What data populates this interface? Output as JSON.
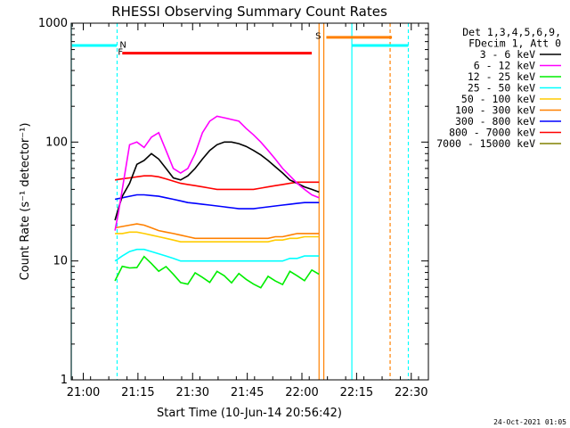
{
  "chart_data": {
    "type": "line",
    "title": "RHESSI Observing Summary Count Rates",
    "xlabel": "Start Time (10-Jun-14 20:56:42)",
    "ylabel": "Count Rate (s⁻¹ detector⁻¹)",
    "yscale": "log",
    "ylim": [
      1,
      1000
    ],
    "xlim_minutes_after_start": [
      0,
      98
    ],
    "x_tick_labels": [
      "21:00",
      "21:15",
      "21:30",
      "21:45",
      "22:00",
      "22:15",
      "22:30"
    ],
    "x_tick_minutes": [
      3.3,
      18.3,
      33.3,
      48.3,
      63.3,
      78.3,
      93.3
    ],
    "y_tick_labels": [
      "1",
      "10",
      "100",
      "1000"
    ],
    "y_tick_values": [
      1,
      10,
      100,
      1000
    ],
    "legend_header": [
      "Det 1,3,4,5,6,9,",
      "FDecim 1, Att 0"
    ],
    "series": [
      {
        "name": "3 - 6 keV",
        "color": "#000000",
        "x": [
          12,
          13,
          14,
          16,
          18,
          20,
          22,
          24,
          26,
          28,
          30,
          32,
          34,
          36,
          38,
          40,
          42,
          44,
          46,
          48,
          50,
          52,
          54,
          56,
          58,
          60,
          62,
          64,
          66,
          68
        ],
        "y": [
          22,
          28,
          35,
          45,
          65,
          70,
          80,
          72,
          60,
          50,
          48,
          52,
          60,
          72,
          85,
          95,
          100,
          100,
          97,
          92,
          85,
          78,
          70,
          62,
          55,
          48,
          45,
          42,
          40,
          38
        ]
      },
      {
        "name": "6 - 12 keV",
        "color": "#ff00ff",
        "x": [
          12,
          13,
          14,
          16,
          18,
          20,
          22,
          24,
          26,
          28,
          30,
          32,
          34,
          36,
          38,
          40,
          42,
          44,
          46,
          48,
          50,
          52,
          54,
          56,
          58,
          60,
          62,
          64,
          66,
          68
        ],
        "y": [
          18,
          26,
          40,
          95,
          100,
          90,
          110,
          120,
          85,
          60,
          55,
          60,
          80,
          120,
          150,
          165,
          160,
          155,
          150,
          130,
          115,
          100,
          85,
          72,
          60,
          52,
          45,
          40,
          36,
          34
        ]
      },
      {
        "name": "12 - 25 keV",
        "color": "#00ee00",
        "x": [
          12,
          14,
          16,
          18,
          20,
          22,
          24,
          26,
          28,
          30,
          32,
          34,
          36,
          38,
          40,
          42,
          44,
          46,
          48,
          50,
          52,
          54,
          56,
          58,
          60,
          62,
          64,
          66,
          68
        ],
        "y": [
          8,
          8.5,
          9,
          10,
          10,
          9.5,
          9,
          8,
          7.5,
          7,
          7.5,
          7.5,
          7.5,
          7.5,
          7.5,
          7.5,
          7.2,
          7,
          6.8,
          6.8,
          7,
          7,
          7,
          7.2,
          7.5,
          7.5,
          7.5,
          7.5,
          7.5
        ]
      },
      {
        "name": "25 - 50 keV",
        "color": "#00ffff",
        "x": [
          12,
          14,
          16,
          18,
          20,
          22,
          24,
          26,
          28,
          30,
          32,
          34,
          36,
          38,
          40,
          42,
          44,
          46,
          48,
          50,
          52,
          54,
          56,
          58,
          60,
          62,
          64,
          66,
          68
        ],
        "y": [
          10,
          11,
          12,
          12.5,
          12.5,
          12,
          11.5,
          11,
          10.5,
          10,
          10,
          10,
          10,
          10,
          10,
          10,
          10,
          10,
          10,
          10,
          10,
          10,
          10,
          10,
          10.5,
          10.5,
          11,
          11,
          11
        ]
      },
      {
        "name": "50 - 100 keV",
        "color": "#ffcc00",
        "x": [
          12,
          14,
          16,
          18,
          20,
          22,
          24,
          26,
          28,
          30,
          32,
          34,
          36,
          38,
          40,
          42,
          44,
          46,
          48,
          50,
          52,
          54,
          56,
          58,
          60,
          62,
          64,
          66,
          68
        ],
        "y": [
          17,
          17,
          17.5,
          17.5,
          17,
          16.5,
          16,
          15.5,
          15,
          14.5,
          14.5,
          14.5,
          14.5,
          14.5,
          14.5,
          14.5,
          14.5,
          14.5,
          14.5,
          14.5,
          14.5,
          14.5,
          15,
          15,
          15.5,
          15.5,
          16,
          16,
          16
        ]
      },
      {
        "name": "100 - 300 keV",
        "color": "#ff8000",
        "x": [
          12,
          14,
          16,
          18,
          20,
          22,
          24,
          26,
          28,
          30,
          32,
          34,
          36,
          38,
          40,
          42,
          44,
          46,
          48,
          50,
          52,
          54,
          56,
          58,
          60,
          62,
          64,
          66,
          68
        ],
        "y": [
          19,
          19.5,
          20,
          20.5,
          20,
          19,
          18,
          17.5,
          17,
          16.5,
          16,
          15.5,
          15.5,
          15.5,
          15.5,
          15.5,
          15.5,
          15.5,
          15.5,
          15.5,
          15.5,
          15.5,
          16,
          16,
          16.5,
          17,
          17,
          17,
          17
        ]
      },
      {
        "name": "300 - 800 keV",
        "color": "#0000ff",
        "x": [
          12,
          14,
          16,
          18,
          20,
          22,
          24,
          26,
          28,
          30,
          32,
          34,
          36,
          38,
          40,
          42,
          44,
          46,
          48,
          50,
          52,
          54,
          56,
          58,
          60,
          62,
          64,
          66,
          68
        ],
        "y": [
          33,
          34,
          35,
          36,
          36,
          35.5,
          35,
          34,
          33,
          32,
          31,
          30.5,
          30,
          29.5,
          29,
          28.5,
          28,
          27.5,
          27.5,
          27.5,
          28,
          28.5,
          29,
          29.5,
          30,
          30.5,
          31,
          31,
          31
        ]
      },
      {
        "name": "800 - 7000 keV",
        "color": "#ff0000",
        "x": [
          12,
          14,
          16,
          18,
          20,
          22,
          24,
          26,
          28,
          30,
          32,
          34,
          36,
          38,
          40,
          42,
          44,
          46,
          48,
          50,
          52,
          54,
          56,
          58,
          60,
          62,
          64,
          66,
          68
        ],
        "y": [
          48,
          49,
          50,
          51,
          52,
          52,
          51,
          49,
          47,
          45,
          44,
          43,
          42,
          41,
          40,
          40,
          40,
          40,
          40,
          40,
          41,
          42,
          43,
          44,
          45,
          46,
          46,
          46,
          46
        ]
      },
      {
        "name": "7000 - 15000 keV",
        "color": "#808000",
        "x": [],
        "y": []
      }
    ],
    "flags": {
      "night_label": "N",
      "flare_label": "F",
      "saa_label": "S"
    }
  },
  "footer": {
    "datestamp": "24-Oct-2021 01:05"
  }
}
